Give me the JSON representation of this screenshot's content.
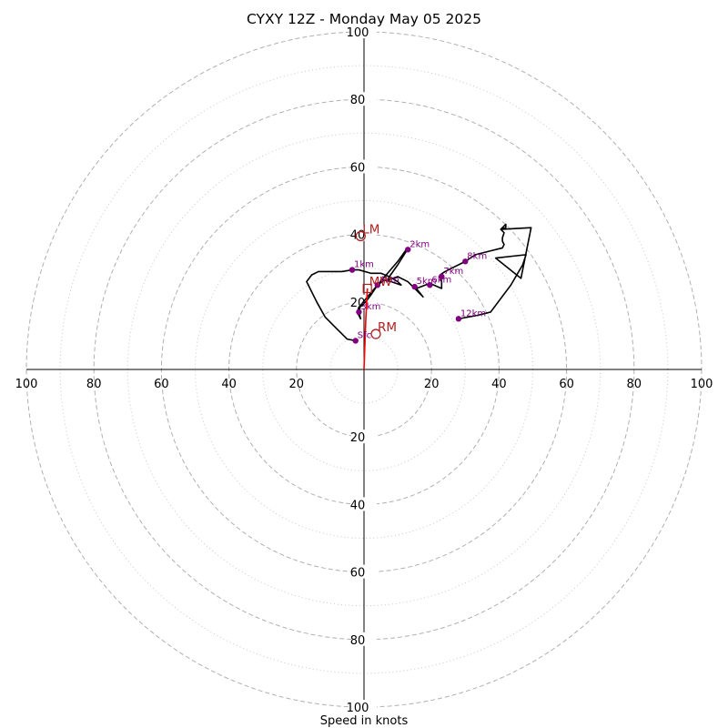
{
  "chart_data": {
    "type": "hodograph",
    "title": "CYXY 12Z - Monday May 05 2025",
    "xlabel": "Speed in knots",
    "range": 100,
    "rings_major": [
      20,
      40,
      60,
      80,
      100
    ],
    "rings_minor": [
      10,
      30,
      50,
      70,
      90
    ],
    "tick_labels": [
      "100",
      "80",
      "60",
      "40",
      "20",
      "20",
      "40",
      "60",
      "80",
      "100"
    ],
    "trace": [
      [
        -2.5,
        8.5
      ],
      [
        -5,
        9
      ],
      [
        -7,
        11
      ],
      [
        -9,
        13
      ],
      [
        -11.5,
        15.5
      ],
      [
        -14,
        20
      ],
      [
        -17,
        26
      ],
      [
        -15.5,
        28
      ],
      [
        -13.5,
        29
      ],
      [
        -11.5,
        29
      ],
      [
        -9,
        29
      ],
      [
        -6.5,
        29
      ],
      [
        -3.5,
        29.5
      ],
      [
        -1.5,
        29.5
      ],
      [
        2,
        28.5
      ],
      [
        5,
        28.5
      ],
      [
        7.5,
        27.5
      ],
      [
        10,
        26
      ],
      [
        11,
        25
      ],
      [
        8,
        26
      ],
      [
        6,
        26.5
      ],
      [
        4,
        25
      ],
      [
        2,
        22
      ],
      [
        0.5,
        20
      ],
      [
        -1.5,
        18.5
      ],
      [
        -2,
        17
      ],
      [
        -1.5,
        16
      ],
      [
        -1,
        15
      ],
      [
        -1.5,
        17
      ],
      [
        -1,
        19
      ],
      [
        1,
        21.5
      ],
      [
        4,
        25
      ],
      [
        7,
        28.5
      ],
      [
        10,
        32
      ],
      [
        12.5,
        35.5
      ],
      [
        12.5,
        35
      ],
      [
        10,
        31
      ],
      [
        7.5,
        27.5
      ],
      [
        7,
        26.5
      ],
      [
        10,
        27.5
      ],
      [
        13,
        26
      ],
      [
        14.5,
        24.5
      ],
      [
        17.5,
        21.5
      ],
      [
        15.5,
        24
      ],
      [
        19.5,
        25.5
      ],
      [
        23,
        24
      ],
      [
        23,
        26
      ],
      [
        22.5,
        28
      ],
      [
        24,
        29
      ],
      [
        26,
        30
      ],
      [
        30,
        32
      ],
      [
        33,
        34
      ],
      [
        37,
        35
      ],
      [
        41,
        36
      ],
      [
        41.5,
        37
      ],
      [
        41,
        38
      ],
      [
        41,
        39
      ],
      [
        41.5,
        40.5
      ],
      [
        40.5,
        41.5
      ],
      [
        42,
        42
      ],
      [
        42,
        43
      ],
      [
        40.5,
        41.5
      ],
      [
        49.5,
        42
      ],
      [
        46.5,
        27
      ],
      [
        39,
        33
      ],
      [
        48,
        34
      ],
      [
        47,
        31
      ],
      [
        43.5,
        25
      ],
      [
        37.5,
        17
      ],
      [
        33.5,
        16
      ],
      [
        28,
        15
      ]
    ],
    "height_labels": [
      {
        "label": "Sfc",
        "x": -2.5,
        "y": 8.5
      },
      {
        "label": "1km",
        "x": -3.5,
        "y": 29.5
      },
      {
        "label": "2km",
        "x": 13,
        "y": 35.5
      },
      {
        "label": "3km",
        "x": -1.5,
        "y": 17
      },
      {
        "label": "4km",
        "x": 4,
        "y": 25
      },
      {
        "label": "5km",
        "x": 15,
        "y": 24.5
      },
      {
        "label": "6km",
        "x": 19.5,
        "y": 25
      },
      {
        "label": "7km",
        "x": 23,
        "y": 27.5
      },
      {
        "label": "8km",
        "x": 30,
        "y": 32
      },
      {
        "label": "12km",
        "x": 28,
        "y": 15
      }
    ],
    "storm_motion_vector": [
      [
        0,
        0
      ],
      [
        0.5,
        14
      ],
      [
        1,
        24
      ]
    ],
    "motion_markers": [
      {
        "label": "LM",
        "x": -1,
        "y": 39.5
      },
      {
        "label": "RM",
        "x": 3.5,
        "y": 10.5
      },
      {
        "label": "MW",
        "x": 1,
        "y": 24
      }
    ],
    "grid": true,
    "colors": {
      "trace": "#000000",
      "heights": "#800080",
      "motion": "#b22222",
      "vector": "#ff0000",
      "rings": "#b0b0b0"
    }
  }
}
